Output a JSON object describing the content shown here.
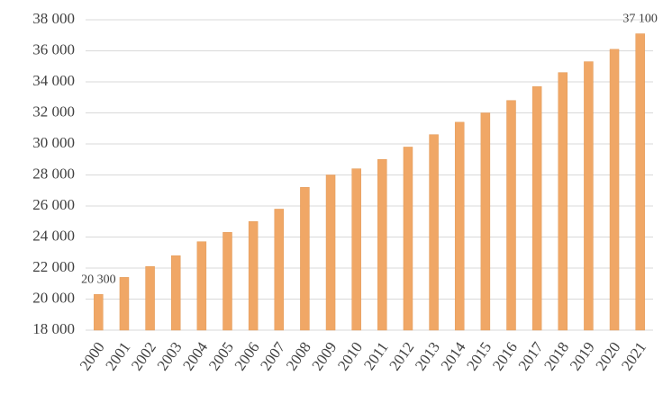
{
  "chart_data": {
    "type": "bar",
    "categories": [
      "2000",
      "2001",
      "2002",
      "2003",
      "2004",
      "2005",
      "2006",
      "2007",
      "2008",
      "2009",
      "2010",
      "2011",
      "2012",
      "2013",
      "2014",
      "2015",
      "2016",
      "2017",
      "2018",
      "2019",
      "2020",
      "2021"
    ],
    "values": [
      20300,
      21400,
      22100,
      22800,
      23700,
      24300,
      25000,
      25800,
      27200,
      28000,
      28400,
      29000,
      29800,
      30600,
      31400,
      32000,
      32800,
      33700,
      34600,
      35300,
      36100,
      37100
    ],
    "value_labels": [
      "20 300",
      null,
      null,
      null,
      null,
      null,
      null,
      null,
      null,
      null,
      null,
      null,
      null,
      null,
      null,
      null,
      null,
      null,
      null,
      null,
      null,
      "37 100"
    ],
    "color": "#f0a766",
    "ylim": [
      18000,
      38000
    ],
    "yticks": [
      {
        "value": 18000,
        "label": "18 000"
      },
      {
        "value": 20000,
        "label": "20 000"
      },
      {
        "value": 22000,
        "label": "22 000"
      },
      {
        "value": 24000,
        "label": "24 000"
      },
      {
        "value": 26000,
        "label": "26 000"
      },
      {
        "value": 28000,
        "label": "28 000"
      },
      {
        "value": 30000,
        "label": "30 000"
      },
      {
        "value": 32000,
        "label": "32 000"
      },
      {
        "value": 34000,
        "label": "34 000"
      },
      {
        "value": 36000,
        "label": "36 000"
      },
      {
        "value": 38000,
        "label": "38 000"
      }
    ],
    "grid": true
  }
}
